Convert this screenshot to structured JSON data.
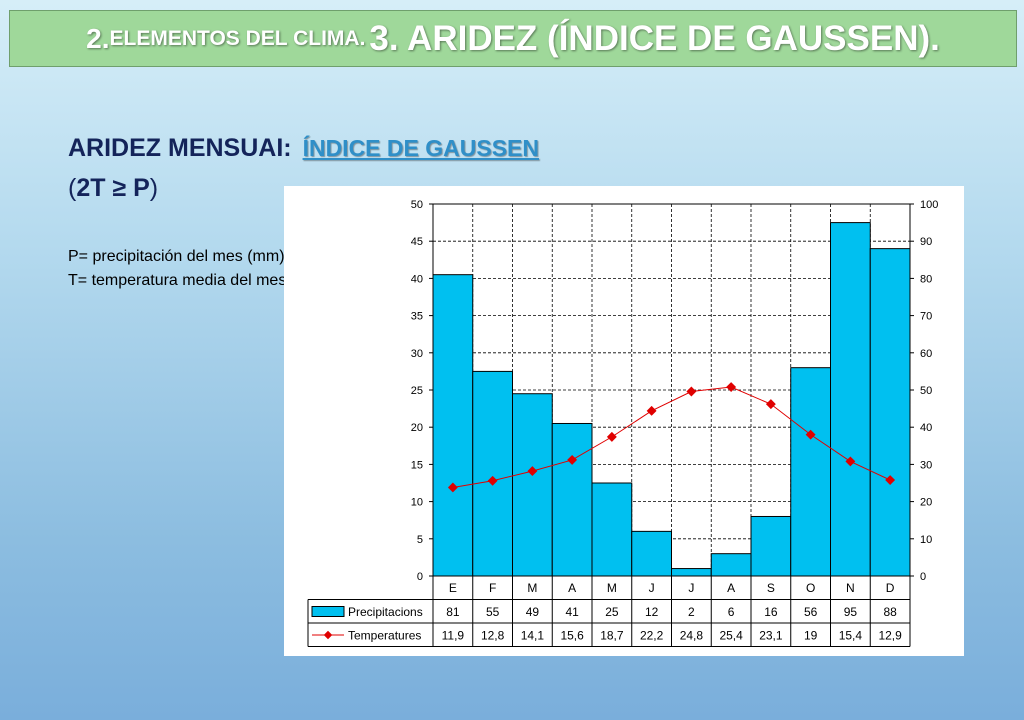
{
  "slide": {
    "title_number": "2.",
    "title_part1": "ELEMENTOS DEL CLIMA.",
    "title_part2": "3. ARIDEZ (ÍNDICE DE GAUSSEN).",
    "heading_prefix": "ARIDEZ MENSUAI:",
    "heading_accent": "ÍNDICE DE GAUSSEN",
    "formula_open": "(",
    "formula_body": "2T ≥ P",
    "formula_close": ")",
    "def_p": "P= precipitación del mes (mm)",
    "def_t": "T= temperatura media del mes en ºC"
  },
  "chart_data": {
    "type": "bar",
    "categories": [
      "E",
      "F",
      "M",
      "A",
      "M",
      "J",
      "J",
      "A",
      "S",
      "O",
      "N",
      "D"
    ],
    "series": [
      {
        "name": "Precipitacions",
        "type": "bar",
        "axis": "right",
        "color": "#00c0f0",
        "values": [
          81,
          55,
          49,
          41,
          25,
          12,
          2,
          6,
          16,
          56,
          95,
          88
        ],
        "labels": [
          "81",
          "55",
          "49",
          "41",
          "25",
          "12",
          "2",
          "6",
          "16",
          "56",
          "95",
          "88"
        ]
      },
      {
        "name": "Temperatures",
        "type": "line",
        "axis": "left",
        "color": "#e00000",
        "values": [
          11.9,
          12.8,
          14.1,
          15.6,
          18.7,
          22.2,
          24.8,
          25.4,
          23.1,
          19,
          15.4,
          12.9
        ],
        "labels": [
          "11,9",
          "12,8",
          "14,1",
          "15,6",
          "18,7",
          "22,2",
          "24,8",
          "25,4",
          "23,1",
          "19",
          "15,4",
          "12,9"
        ]
      }
    ],
    "y_left": {
      "min": 0,
      "max": 50,
      "ticks": [
        "0",
        "5",
        "10",
        "15",
        "20",
        "25",
        "30",
        "35",
        "40",
        "45",
        "50"
      ]
    },
    "y_right": {
      "min": 0,
      "max": 100,
      "ticks": [
        "0",
        "10",
        "20",
        "30",
        "40",
        "50",
        "60",
        "70",
        "80",
        "90",
        "100"
      ]
    },
    "grid": true,
    "grid_style": "dashed",
    "legend": "data-table-bottom"
  }
}
